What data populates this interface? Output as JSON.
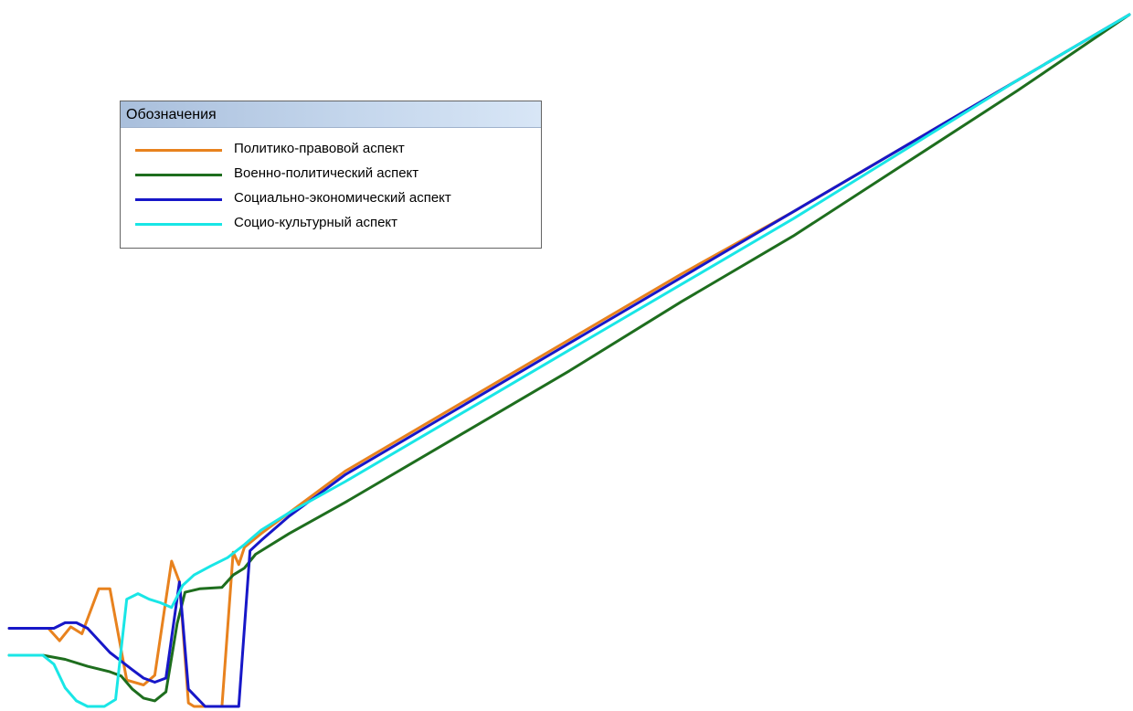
{
  "legend": {
    "title": "Обозначения",
    "items": [
      {
        "label": "Политико-правовой аспект",
        "color": "#e8821e"
      },
      {
        "label": "Военно-политический аспект",
        "color": "#1e6e1e"
      },
      {
        "label": "Социально-экономический аспект",
        "color": "#1717c8"
      },
      {
        "label": "Социо-культурный аспект",
        "color": "#19e6e6"
      }
    ]
  },
  "chart_data": {
    "type": "line",
    "title": "",
    "xlabel": "",
    "ylabel": "",
    "xlim": [
      0,
      100
    ],
    "ylim": [
      0,
      100
    ],
    "grid": false,
    "axes_visible": false,
    "legend_position": "top-left",
    "series": [
      {
        "name": "Политико-правовой аспект",
        "color": "#e8821e",
        "x": [
          0,
          2,
          3.5,
          4.5,
          5.5,
          6.5,
          8,
          9,
          10.5,
          12,
          13,
          14.5,
          15.2,
          16,
          16.5,
          17.5,
          19,
          20,
          20.5,
          21,
          22.5,
          25,
          30,
          40,
          50,
          60,
          70,
          80,
          90,
          100
        ],
        "y": [
          11.3,
          11.3,
          11.3,
          9.5,
          11.5,
          10.5,
          17,
          17,
          3.8,
          3.1,
          4.5,
          21,
          18,
          0.5,
          0,
          0,
          0,
          22.3,
          20.5,
          23,
          25,
          28,
          34,
          43.5,
          53,
          62.5,
          71.5,
          81,
          90.5,
          100
        ]
      },
      {
        "name": "Военно-политический аспект",
        "color": "#1e6e1e",
        "x": [
          0,
          3,
          5,
          7,
          9,
          10,
          11,
          12,
          13,
          14,
          15,
          15.7,
          17,
          19,
          20,
          21,
          22,
          25,
          30,
          40,
          50,
          60,
          70,
          80,
          90,
          100
        ],
        "y": [
          7.4,
          7.4,
          6.8,
          5.8,
          5,
          4.4,
          2.5,
          1.2,
          0.8,
          2.1,
          12,
          16.5,
          17,
          17.2,
          19,
          20,
          22,
          25,
          29.5,
          39,
          48.5,
          58.5,
          68,
          78.5,
          89,
          100
        ]
      },
      {
        "name": "Социально-экономический аспект",
        "color": "#1717c8",
        "x": [
          0,
          4,
          5,
          6,
          7,
          9,
          11,
          12,
          13,
          14,
          15.2,
          16,
          17.5,
          19,
          20.5,
          21.5,
          22.5,
          25,
          30,
          40,
          50,
          60,
          70,
          80,
          90,
          100
        ],
        "y": [
          11.3,
          11.3,
          12.1,
          12.1,
          11.3,
          7.8,
          5.3,
          4.1,
          3.5,
          4.1,
          18,
          2.5,
          0,
          0,
          0,
          22.5,
          24,
          27.5,
          33.5,
          43,
          52.5,
          62,
          71.5,
          81,
          90.5,
          100
        ]
      },
      {
        "name": "Социо-культурный аспект",
        "color": "#19e6e6",
        "x": [
          0,
          3,
          4,
          5,
          6,
          7,
          8.5,
          9.5,
          10.5,
          11.5,
          12.5,
          13.5,
          14.5,
          15.5,
          16.5,
          18,
          19.5,
          21,
          22.5,
          25,
          30,
          40,
          50,
          60,
          70,
          80,
          90,
          100
        ],
        "y": [
          7.4,
          7.4,
          6.1,
          2.7,
          0.8,
          0,
          0,
          1,
          15.5,
          16.3,
          15.5,
          15,
          14.3,
          17.5,
          19,
          20.3,
          21.5,
          23.4,
          25.5,
          28,
          32.5,
          42,
          51.5,
          61,
          70.5,
          80.5,
          90.5,
          100
        ]
      }
    ]
  }
}
